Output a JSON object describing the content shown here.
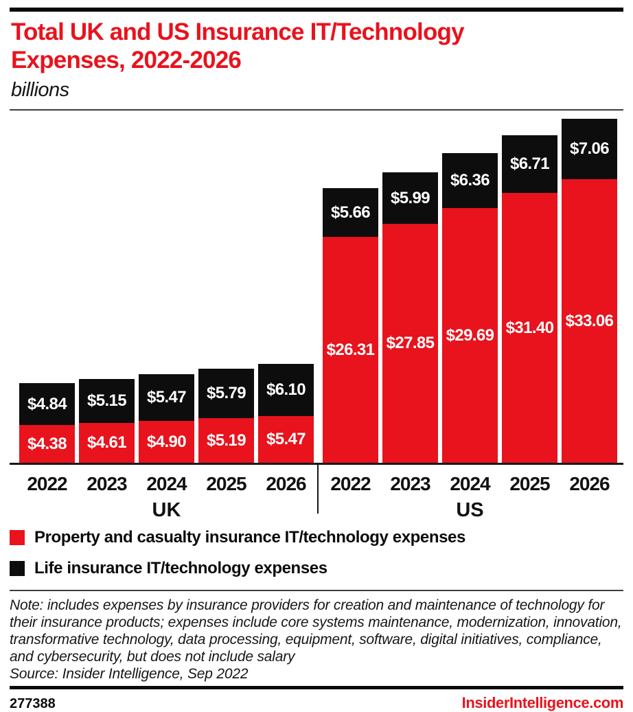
{
  "header": {
    "title": "Total UK and US Insurance IT/Technology Expenses, 2022-2026",
    "subtitle": "billions"
  },
  "colors": {
    "accent_red": "#e8131d",
    "bar_black": "#0d0d0d"
  },
  "chart_data": {
    "type": "bar",
    "stacked": true,
    "orientation": "vertical",
    "title": "Total UK and US Insurance IT/Technology Expenses, 2022-2026",
    "unit_label": "billions",
    "value_prefix": "$",
    "gridlines": false,
    "y_axis_shown": false,
    "value_labels_shown": true,
    "ylim": [
      0,
      40.12
    ],
    "groups": [
      {
        "label": "UK",
        "categories": [
          "2022",
          "2023",
          "2024",
          "2025",
          "2026"
        ],
        "series": [
          {
            "name": "Property and casualty insurance IT/technology expenses",
            "color": "#e8131d",
            "values": [
              4.38,
              4.61,
              4.9,
              5.19,
              5.47
            ]
          },
          {
            "name": "Life insurance IT/technology expenses",
            "color": "#0d0d0d",
            "values": [
              4.84,
              5.15,
              5.47,
              5.79,
              6.1
            ]
          }
        ]
      },
      {
        "label": "US",
        "categories": [
          "2022",
          "2023",
          "2024",
          "2025",
          "2026"
        ],
        "series": [
          {
            "name": "Property and casualty insurance IT/technology expenses",
            "color": "#e8131d",
            "values": [
              26.31,
              27.85,
              29.69,
              31.4,
              33.06
            ]
          },
          {
            "name": "Life insurance IT/technology expenses",
            "color": "#0d0d0d",
            "values": [
              5.66,
              5.99,
              6.36,
              6.71,
              7.06
            ]
          }
        ]
      }
    ],
    "legend_position": "bottom-left"
  },
  "legend": [
    {
      "label": "Property and casualty insurance IT/technology expenses",
      "color": "#e8131d"
    },
    {
      "label": "Life insurance IT/technology expenses",
      "color": "#0d0d0d"
    }
  ],
  "note": "Note: includes expenses by insurance providers for creation and maintenance of technology for their insurance products; expenses include core systems maintenance, modernization, innovation, transformative technology, data processing, equipment, software, digital initiatives, compliance, and cybersecurity, but does not include salary",
  "source": "Source: Insider Intelligence, Sep 2022",
  "footer": {
    "chart_id": "277388",
    "site": "InsiderIntelligence.com"
  }
}
